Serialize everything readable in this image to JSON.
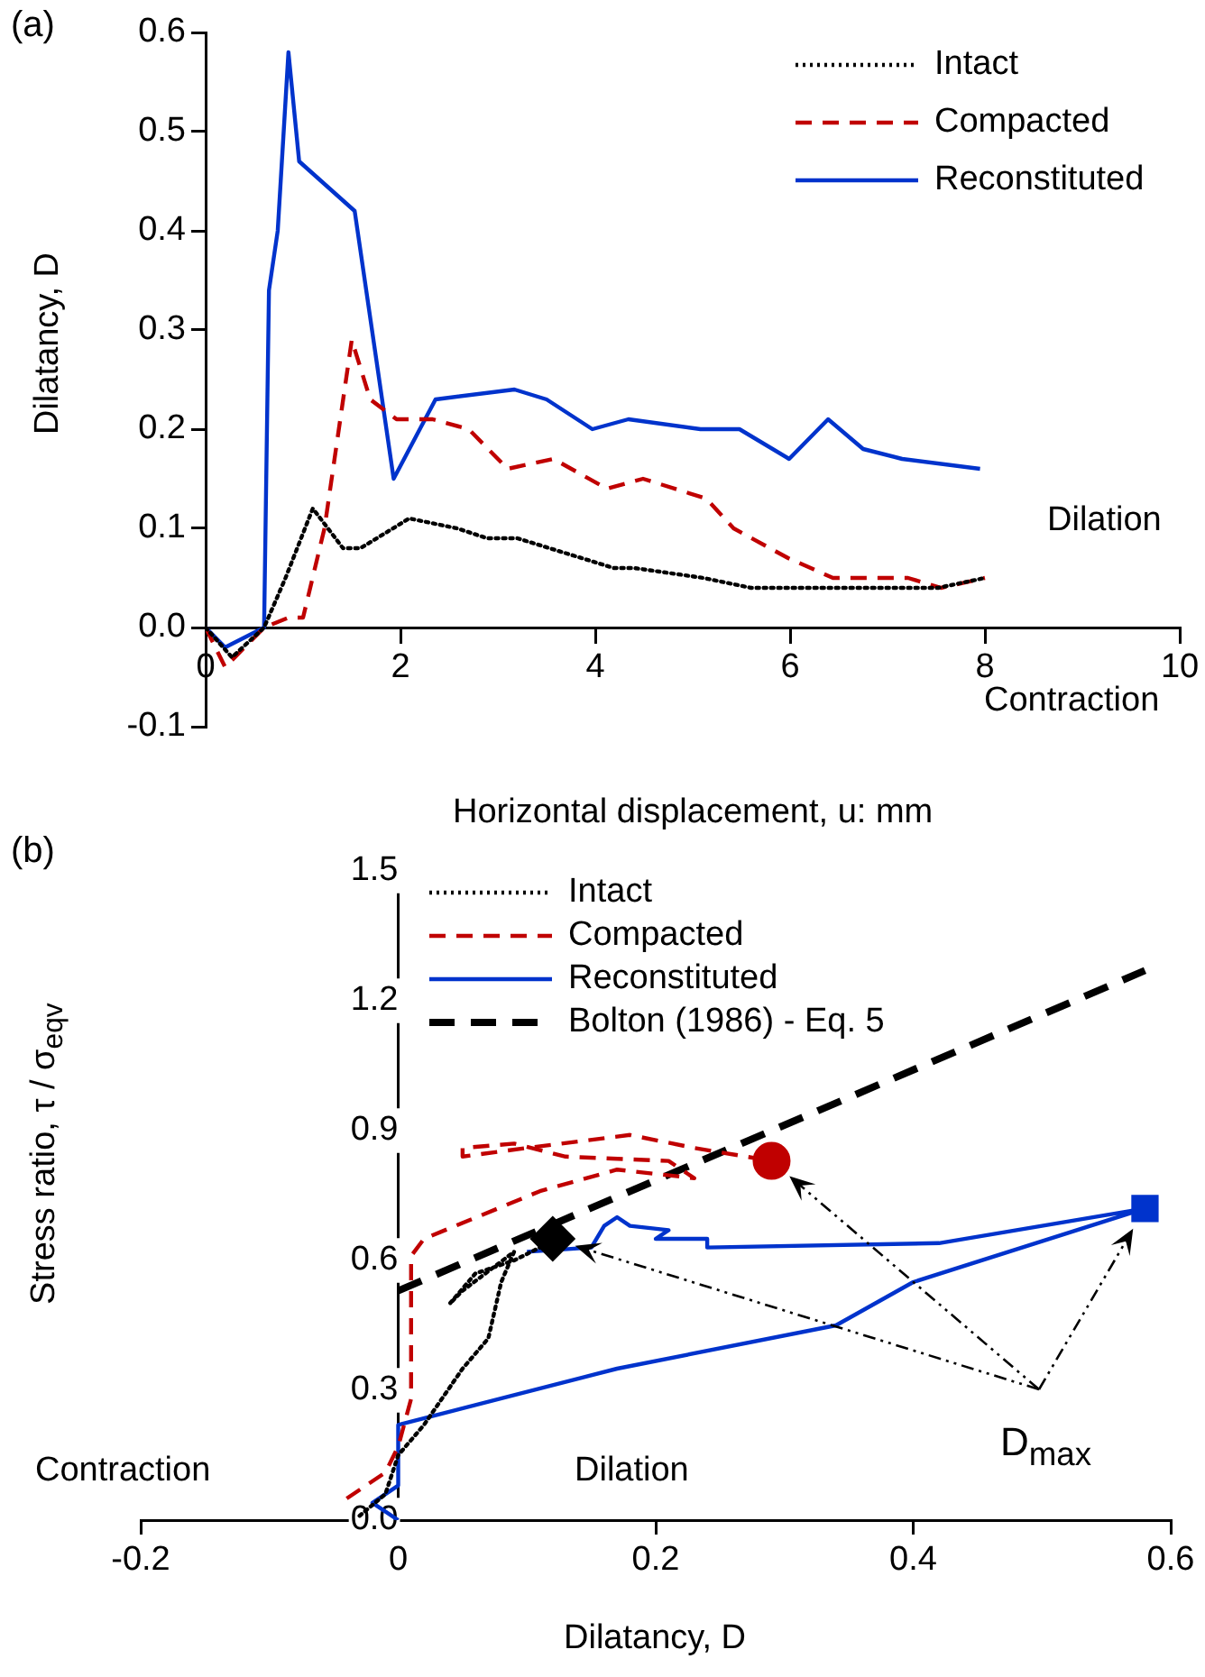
{
  "chart_data": [
    {
      "type": "line",
      "title": "(a)",
      "xlabel": "Horizontal displacement, u: mm",
      "ylabel": "Dilatancy, D",
      "xlim": [
        0,
        10
      ],
      "xticks": [
        0,
        2,
        4,
        6,
        8,
        10
      ],
      "ylim": [
        -0.1,
        0.6
      ],
      "yticks": [
        -0.1,
        {
          "value": 0,
          "label": "0.0"
        },
        0.1,
        0.2,
        0.3,
        0.4,
        0.5,
        0.6
      ],
      "grid": false,
      "legend": "top right",
      "annotations": [
        "Dilation",
        "Contraction"
      ],
      "series": [
        {
          "name": "Intact",
          "color": "#000000",
          "line_style": "dotted",
          "x": [
            0,
            0.27,
            0.6,
            0.82,
            1.1,
            1.41,
            1.59,
            2.09,
            2.58,
            2.89,
            3.2,
            4.19,
            4.4,
            5.11,
            5.6,
            6.84,
            7.52,
            8.0
          ],
          "values": [
            0,
            -0.03,
            0,
            0.05,
            0.12,
            0.08,
            0.08,
            0.11,
            0.1,
            0.09,
            0.09,
            0.06,
            0.06,
            0.05,
            0.04,
            0.04,
            0.04,
            0.05
          ]
        },
        {
          "name": "Compacted",
          "color": "#c00000",
          "line_style": "dashed",
          "x": [
            0,
            0.2,
            0.6,
            0.85,
            1.0,
            1.22,
            1.5,
            1.69,
            1.96,
            2.33,
            2.7,
            3.1,
            3.57,
            4.12,
            4.49,
            5.14,
            5.42,
            5.98,
            6.44,
            6.84,
            7.21,
            7.55,
            8.0
          ],
          "values": [
            0,
            -0.04,
            0,
            0.01,
            0.01,
            0.1,
            0.29,
            0.23,
            0.21,
            0.21,
            0.2,
            0.16,
            0.17,
            0.14,
            0.15,
            0.13,
            0.1,
            0.07,
            0.05,
            0.05,
            0.05,
            0.04,
            0.05
          ]
        },
        {
          "name": "Reconstituted",
          "color": "#0033cc",
          "line_style": "solid",
          "x": [
            0,
            0.2,
            0.6,
            0.65,
            0.74,
            0.85,
            0.96,
            1.53,
            1.93,
            2.36,
            3.17,
            3.5,
            3.97,
            4.34,
            5.08,
            5.48,
            5.99,
            6.39,
            6.75,
            7.15,
            7.95
          ],
          "values": [
            0,
            -0.02,
            0,
            0.34,
            0.4,
            0.58,
            0.47,
            0.42,
            0.15,
            0.23,
            0.24,
            0.23,
            0.2,
            0.21,
            0.2,
            0.2,
            0.17,
            0.21,
            0.18,
            0.17,
            0.16
          ]
        }
      ]
    },
    {
      "type": "line",
      "title": "(b)",
      "xlabel": "Dilatancy, D",
      "ylabel": "Stress ratio, τ / σ$_{eqv}$",
      "xlim": [
        -0.2,
        0.6
      ],
      "xticks": [
        -0.2,
        0,
        0.2,
        0.4,
        0.6
      ],
      "ylim": [
        0,
        1.5
      ],
      "yticks": [
        {
          "value": 0,
          "label": "0.0"
        },
        0.3,
        0.6,
        0.9,
        1.2,
        1.5
      ],
      "grid": false,
      "legend": "top",
      "annotations": [
        "Contraction",
        "Dilation",
        "D$_{max}$"
      ],
      "series": [
        {
          "name": "Intact",
          "color": "#000000",
          "line_style": "dotted",
          "x": [
            -0.03,
            -0.01,
            0.0,
            0.02,
            0.05,
            0.07,
            0.08,
            0.09,
            0.05,
            0.04,
            0.06,
            0.09,
            0.11,
            0.12
          ],
          "values": [
            0.01,
            0.06,
            0.15,
            0.22,
            0.35,
            0.42,
            0.55,
            0.62,
            0.53,
            0.5,
            0.57,
            0.6,
            0.63,
            0.65
          ]
        },
        {
          "name": "Compacted",
          "color": "#c00000",
          "line_style": "dashed",
          "x": [
            -0.04,
            -0.01,
            0.0,
            0.01,
            0.01,
            0.02,
            0.11,
            0.17,
            0.23,
            0.21,
            0.13,
            0.09,
            0.05,
            0.05,
            0.1,
            0.18,
            0.23,
            0.29
          ],
          "values": [
            0.05,
            0.11,
            0.17,
            0.28,
            0.61,
            0.65,
            0.76,
            0.81,
            0.79,
            0.83,
            0.84,
            0.87,
            0.86,
            0.84,
            0.86,
            0.89,
            0.86,
            0.83
          ]
        },
        {
          "name": "Reconstituted",
          "color": "#0033cc",
          "line_style": "solid",
          "x": [
            0,
            -0.02,
            0,
            0,
            0.17,
            0.34,
            0.4,
            0.58,
            0.42,
            0.24,
            0.24,
            0.2,
            0.21,
            0.18,
            0.17,
            0.16,
            0.15,
            0.1
          ],
          "values": [
            0,
            0.04,
            0.08,
            0.22,
            0.35,
            0.45,
            0.55,
            0.72,
            0.64,
            0.63,
            0.65,
            0.65,
            0.67,
            0.68,
            0.7,
            0.68,
            0.63,
            0.62
          ]
        },
        {
          "name": "Bolton (1986) - Eq. 5",
          "color": "#000000",
          "line_style": "dashed",
          "x": [
            0,
            0.58
          ],
          "values": [
            0.53,
            1.27
          ]
        },
        {
          "type": "scatter",
          "color": "#000000",
          "marker": "diamond",
          "x": [
            0.12
          ],
          "values": [
            0.65
          ]
        },
        {
          "type": "scatter",
          "color": "#c00000",
          "marker": "circle",
          "x": [
            0.29
          ],
          "values": [
            0.83
          ]
        },
        {
          "type": "scatter",
          "color": "#0033cc",
          "marker": "square",
          "x": [
            0.58
          ],
          "values": [
            0.72
          ]
        }
      ]
    }
  ]
}
